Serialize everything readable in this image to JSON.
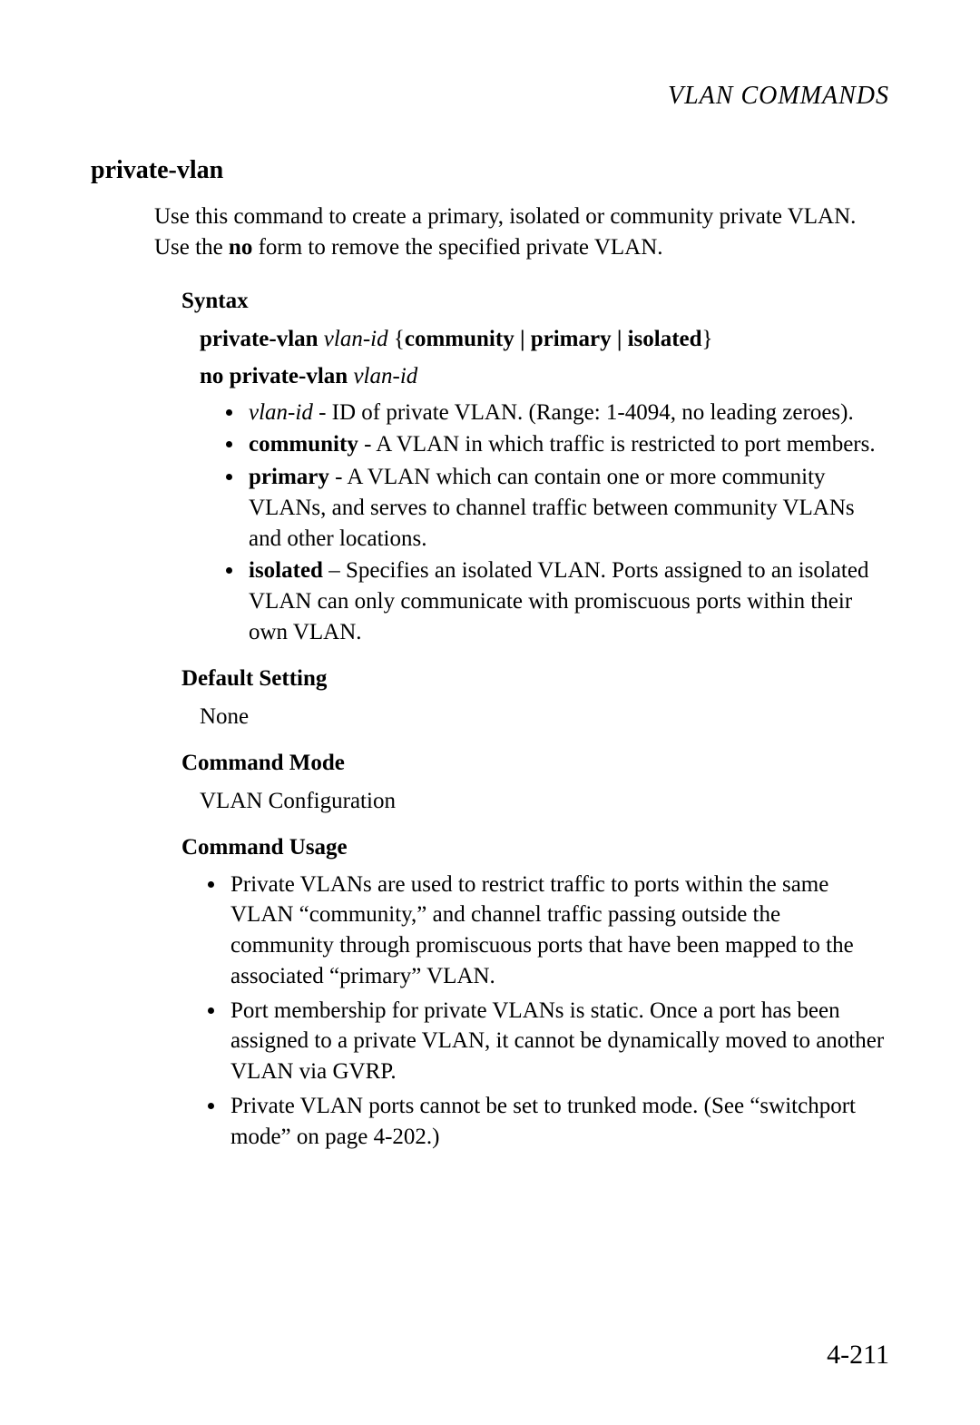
{
  "runningHead": {
    "prefix": "VLAN C",
    "suffix": "OMMANDS"
  },
  "commandTitle": "private-vlan",
  "intro": {
    "part1": "Use this command to create a primary, isolated or community private VLAN. Use the ",
    "boldNo": "no",
    "part2": " form to remove the specified private VLAN."
  },
  "headings": {
    "syntax": "Syntax",
    "defaultSetting": "Default Setting",
    "commandMode": "Command Mode",
    "commandUsage": "Command Usage"
  },
  "syntax": {
    "line1": {
      "cmd": "private-vlan ",
      "arg": "vlan-id",
      "rest": " {",
      "opt": "community | primary | isolated",
      "close": "}"
    },
    "line2": {
      "cmd": "no private-vlan ",
      "arg": "vlan-id"
    }
  },
  "params": [
    {
      "term": "vlan-id",
      "termItalic": true,
      "desc": " - ID of private VLAN. (Range: 1-4094, no leading zeroes)."
    },
    {
      "term": "community",
      "termItalic": false,
      "desc": " - A VLAN in which traffic is restricted to port members."
    },
    {
      "term": "primary",
      "termItalic": false,
      "desc": " - A VLAN which can contain one or more community VLANs, and serves to channel traffic between community VLANs and other locations."
    },
    {
      "term": "isolated",
      "termItalic": false,
      "desc": " – Specifies an isolated VLAN. Ports assigned to an isolated VLAN can only communicate with promiscuous ports within their own VLAN."
    }
  ],
  "defaultSettingValue": "None",
  "commandModeValue": "VLAN Configuration",
  "usage": [
    "Private VLANs are used to restrict traffic to ports within the same VLAN “community,” and channel traffic passing outside the community through promiscuous ports that have been mapped to the associated “primary” VLAN.",
    "Port membership for private VLANs is static. Once a port has been assigned to a private VLAN, it cannot be dynamically moved to another VLAN via GVRP.",
    "Private VLAN ports cannot be set to trunked mode. (See “switchport mode” on page 4-202.)"
  ],
  "pageNumber": "4-211"
}
